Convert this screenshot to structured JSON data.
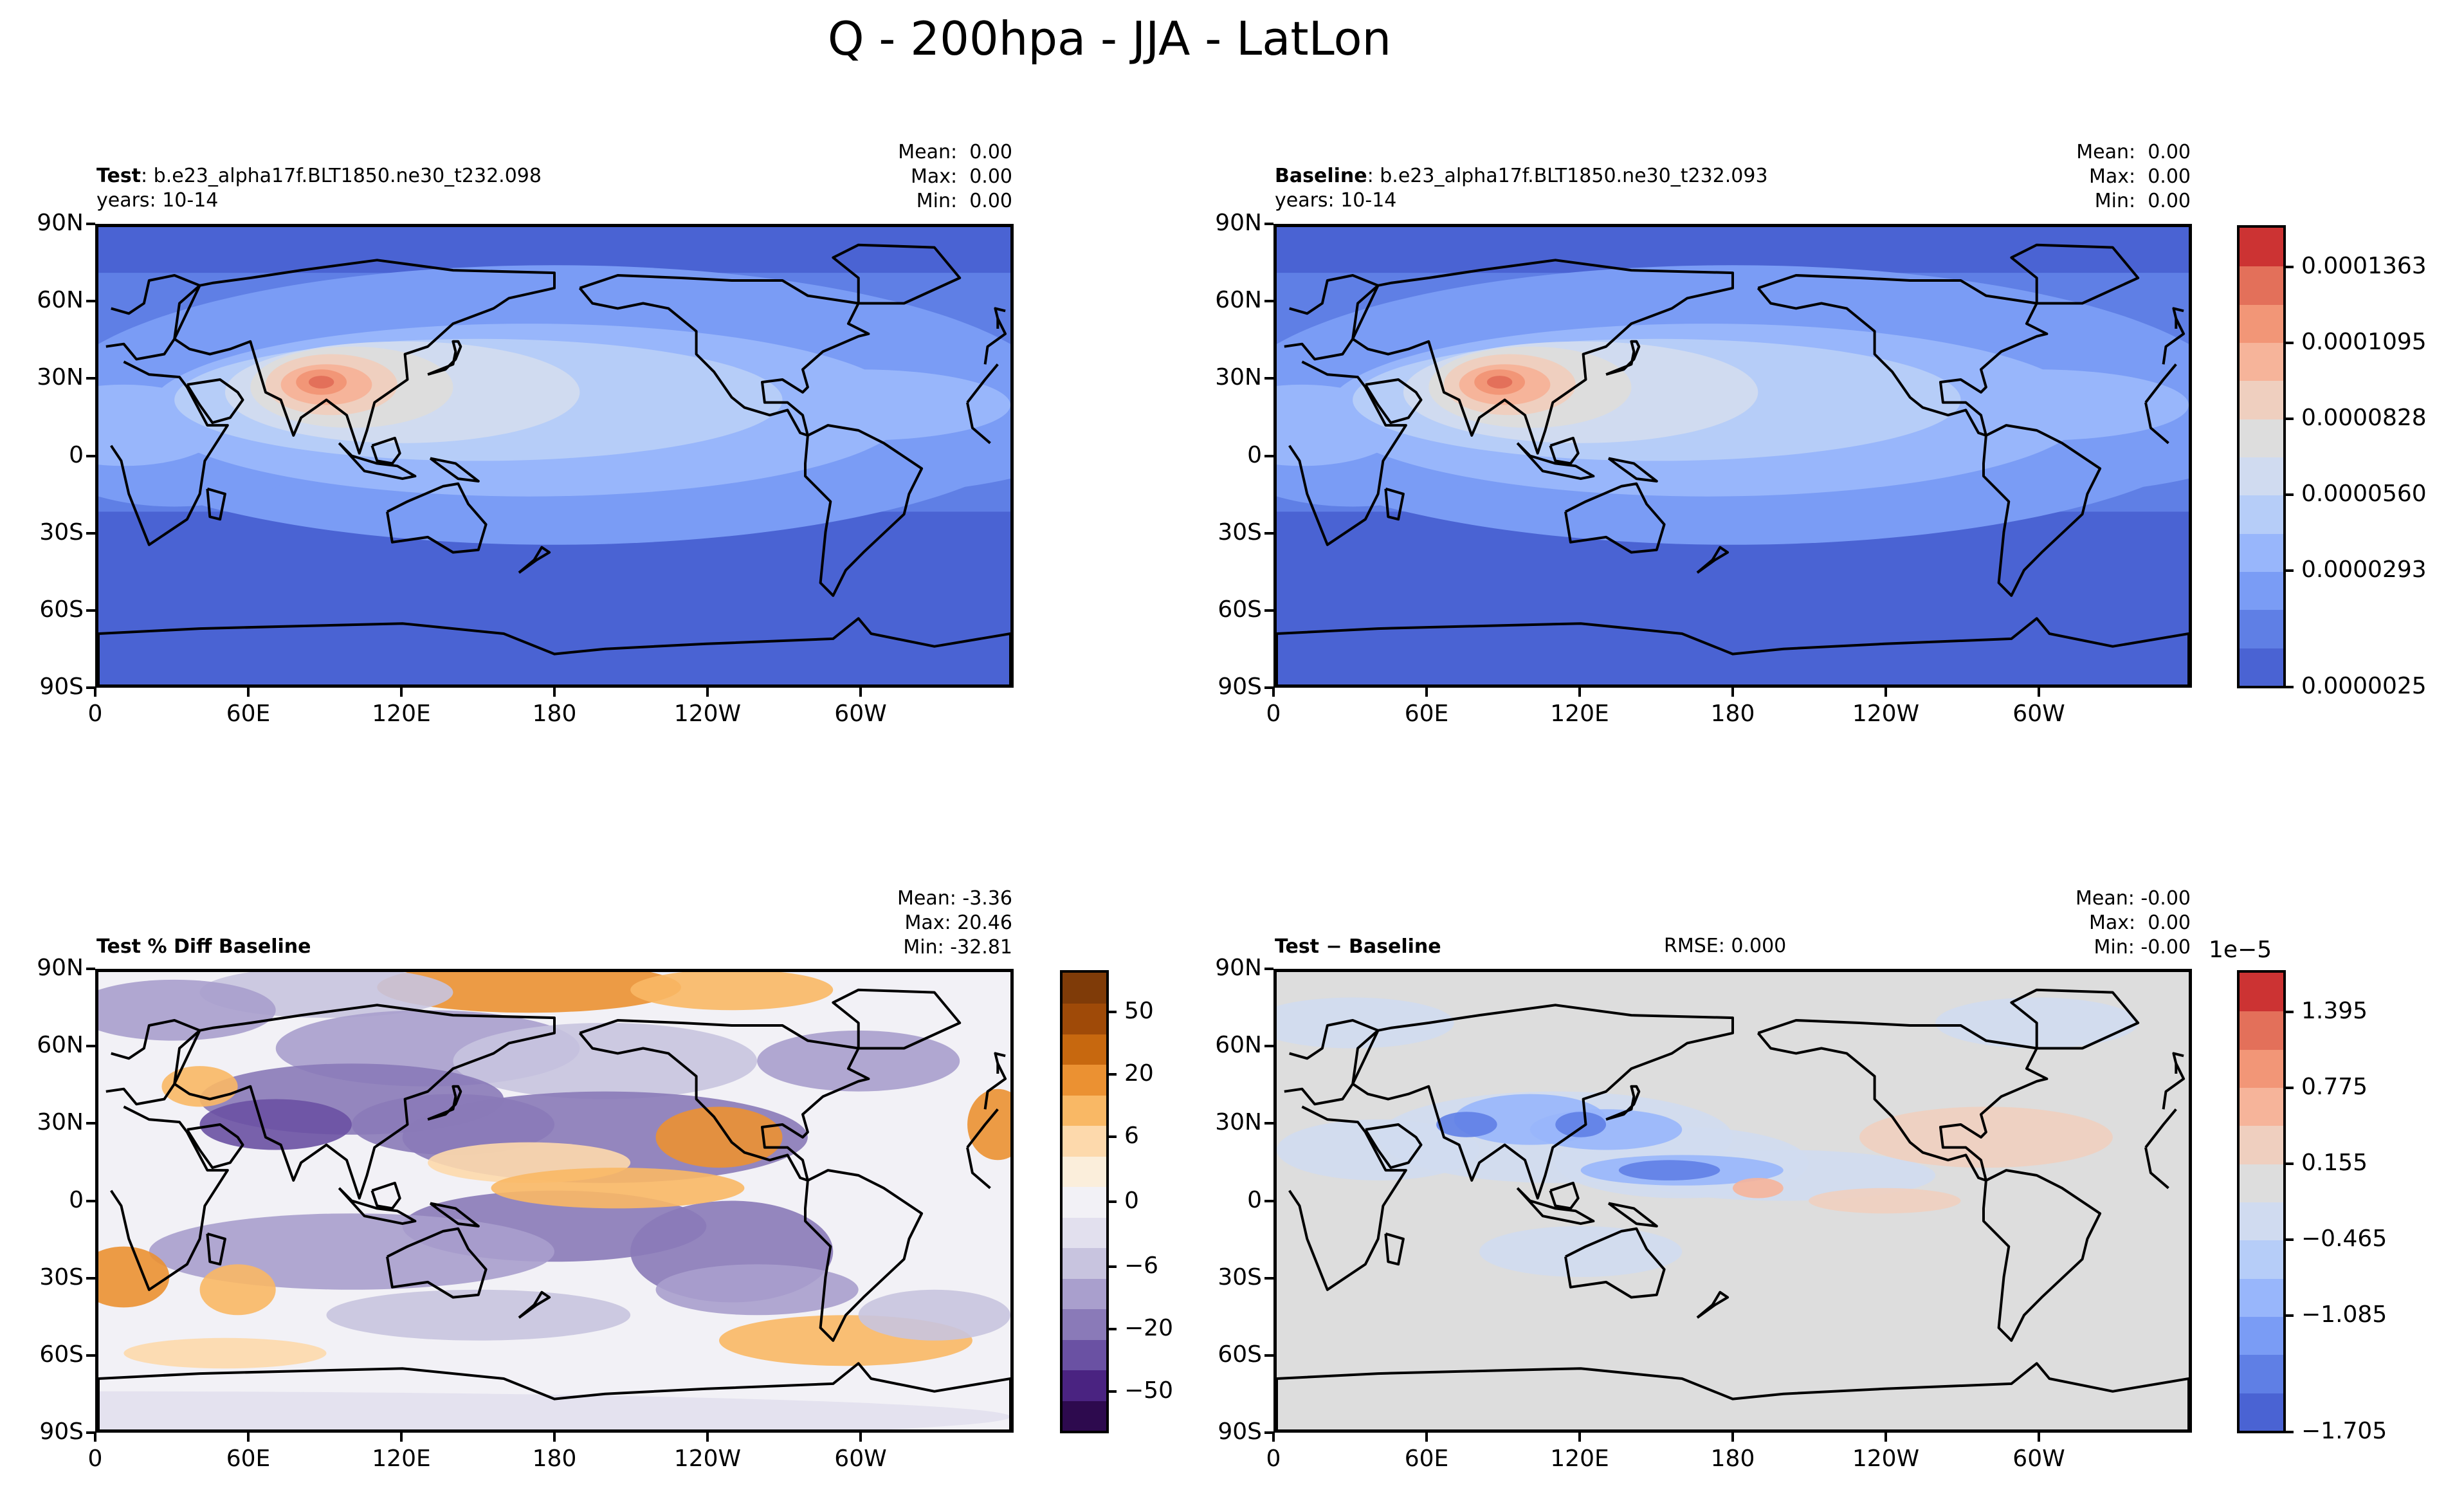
{
  "title": "Q - 200hpa - JJA - LatLon",
  "axes": {
    "lat_ticks": [
      "90N",
      "60N",
      "30N",
      "0",
      "30S",
      "60S",
      "90S"
    ],
    "lon_ticks": [
      "0",
      "60E",
      "120E",
      "180",
      "120W",
      "60W"
    ]
  },
  "panels": {
    "test": {
      "label_bold": "Test",
      "label_rest": ": b.e23_alpha17f.BLT1850.ne30_t232.098",
      "years": "years: 10-14",
      "stats": [
        "Mean:  0.00",
        "Max:  0.00",
        "Min:  0.00"
      ]
    },
    "baseline": {
      "label_bold": "Baseline",
      "label_rest": ": b.e23_alpha17f.BLT1850.ne30_t232.093",
      "years": "years: 10-14",
      "stats": [
        "Mean:  0.00",
        "Max:  0.00",
        "Min:  0.00"
      ]
    },
    "pctdiff": {
      "label_bold": "Test % Diff Baseline",
      "stats": [
        "Mean: -3.36",
        "Max: 20.46",
        "Min: -32.81"
      ]
    },
    "diff": {
      "label_bold": "Test − Baseline",
      "rmse": "RMSE: 0.000",
      "stats": [
        "Mean: -0.00",
        "Max:  0.00",
        "Min: -0.00"
      ]
    }
  },
  "colorbars": {
    "abs": {
      "labels": [
        "0.0001363",
        "0.0001095",
        "0.0000828",
        "0.0000560",
        "0.0000293",
        "0.0000025"
      ],
      "colors": [
        "#4a63d3",
        "#5f7fe5",
        "#7a9cf5",
        "#98b6fb",
        "#b6cdf8",
        "#d0dbf0",
        "#dddddd",
        "#efcfbf",
        "#f6b49a",
        "#f29677",
        "#e3705a",
        "#cc3333"
      ]
    },
    "pct": {
      "labels": [
        "50",
        "20",
        "6",
        "0",
        "−6",
        "−20",
        "−50"
      ],
      "colors": [
        "#2d0a4e",
        "#4a2381",
        "#6a51a3",
        "#8a7ab8",
        "#a99fcd",
        "#c8c4df",
        "#e2e0ee",
        "#f2f1f6",
        "#fbeedb",
        "#fdd9ac",
        "#f9b865",
        "#eb9132",
        "#c7680f",
        "#9f4a08",
        "#7f3b08"
      ]
    },
    "diff": {
      "exponent": "1e−5",
      "labels": [
        "1.395",
        "0.775",
        "0.155",
        "−0.465",
        "−1.085",
        "−1.705"
      ],
      "colors": [
        "#4a63d3",
        "#5f7fe5",
        "#7a9cf5",
        "#98b6fb",
        "#b6cdf8",
        "#d0dbf0",
        "#dddddd",
        "#efcfbf",
        "#f6b49a",
        "#f29677",
        "#e3705a",
        "#cc3333"
      ]
    }
  },
  "chart_data": [
    {
      "type": "heatmap",
      "title": "Test : b.e23_alpha17f.BLT1850.ne30_t232.098",
      "subtitle": "years: 10-14",
      "projection": "PlateCarree",
      "xticks": [
        "0",
        "60E",
        "120E",
        "180",
        "120W",
        "60W"
      ],
      "yticks": [
        "90N",
        "60N",
        "30N",
        "0",
        "30S",
        "60S",
        "90S"
      ],
      "colorbar_ticks": [
        2.5e-06,
        2.93e-05,
        5.6e-05,
        8.28e-05,
        0.0001095,
        0.0001363
      ],
      "features": [
        {
          "lon": 90,
          "lat": 28,
          "value": 0.00013
        },
        {
          "lon": 130,
          "lat": 20,
          "value": 8e-05
        },
        {
          "lon": 180,
          "lat": 10,
          "value": 5e-05
        },
        {
          "lon": 0,
          "lat": -70,
          "value": 5e-06
        }
      ]
    },
    {
      "type": "heatmap",
      "title": "Baseline : b.e23_alpha17f.BLT1850.ne30_t232.093",
      "subtitle": "years: 10-14",
      "projection": "PlateCarree",
      "xticks": [
        "0",
        "60E",
        "120E",
        "180",
        "120W",
        "60W"
      ],
      "yticks": [
        "90N",
        "60N",
        "30N",
        "0",
        "30S",
        "60S",
        "90S"
      ],
      "colorbar_ticks": [
        2.5e-06,
        2.93e-05,
        5.6e-05,
        8.28e-05,
        0.0001095,
        0.0001363
      ],
      "features": [
        {
          "lon": 90,
          "lat": 28,
          "value": 0.00013
        },
        {
          "lon": 130,
          "lat": 20,
          "value": 8e-05
        },
        {
          "lon": 180,
          "lat": 10,
          "value": 5e-05
        },
        {
          "lon": 0,
          "lat": -70,
          "value": 5e-06
        }
      ]
    },
    {
      "type": "heatmap",
      "title": "Test % Diff Baseline",
      "projection": "PlateCarree",
      "colorbar_ticks": [
        -50,
        -20,
        -6,
        0,
        6,
        20,
        50
      ],
      "features": [
        {
          "lon": 170,
          "lat": 85,
          "value": 15
        },
        {
          "lon": 240,
          "lat": 25,
          "value": 20
        },
        {
          "lon": 10,
          "lat": -30,
          "value": 20
        },
        {
          "lon": 130,
          "lat": 30,
          "value": -20
        },
        {
          "lon": 200,
          "lat": 15,
          "value": -15
        }
      ]
    },
    {
      "type": "heatmap",
      "title": "Test − Baseline",
      "projection": "PlateCarree",
      "colorbar_ticks": [
        -1.705,
        -1.085,
        -0.465,
        0.155,
        0.775,
        1.395
      ],
      "colorbar_exponent": "1e−5",
      "features": [
        {
          "lon": 100,
          "lat": 30,
          "value": -1.2
        },
        {
          "lon": 150,
          "lat": 12,
          "value": -1.0
        },
        {
          "lon": 220,
          "lat": 0,
          "value": 0.3
        },
        {
          "lon": 290,
          "lat": 25,
          "value": 0.3
        }
      ]
    }
  ]
}
